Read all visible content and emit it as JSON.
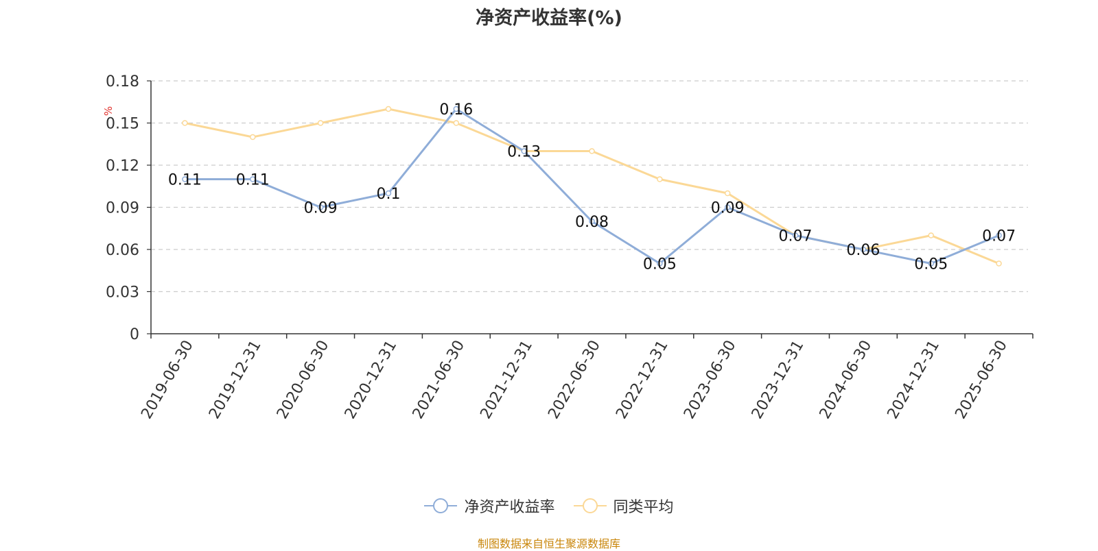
{
  "chart_data": {
    "type": "line",
    "title": "净资产收益率(%)",
    "ylabel": "%",
    "xlabel": "",
    "ylim": [
      0,
      0.18
    ],
    "yticks": [
      "0",
      "0.03",
      "0.06",
      "0.09",
      "0.12",
      "0.15",
      "0.18"
    ],
    "grid": true,
    "legend_position": "bottom",
    "categories": [
      "2019-06-30",
      "2019-12-31",
      "2020-06-30",
      "2020-12-31",
      "2021-06-30",
      "2021-12-31",
      "2022-06-30",
      "2022-12-31",
      "2023-06-30",
      "2023-12-31",
      "2024-06-30",
      "2024-12-31",
      "2025-06-30"
    ],
    "series": [
      {
        "name": "净资产收益率",
        "color": "#8fadd8",
        "values": [
          0.11,
          0.11,
          0.09,
          0.1,
          0.16,
          0.13,
          0.08,
          0.05,
          0.09,
          0.07,
          0.06,
          0.05,
          0.07
        ],
        "data_labels": [
          "0.11",
          "0.11",
          "0.09",
          "0.1",
          "0.16",
          "0.13",
          "0.08",
          "0.05",
          "0.09",
          "0.07",
          "0.06",
          "0.05",
          "0.07"
        ]
      },
      {
        "name": "同类平均",
        "color": "#fbd896",
        "values": [
          0.15,
          0.14,
          0.15,
          0.16,
          0.15,
          0.13,
          0.13,
          0.11,
          0.1,
          0.07,
          0.06,
          0.07,
          0.05
        ]
      }
    ]
  },
  "source_text": "制图数据来自恒生聚源数据库"
}
